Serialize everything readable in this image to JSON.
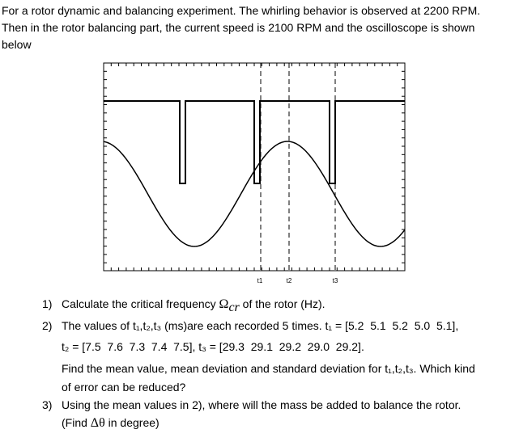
{
  "intro": {
    "lines": [
      "For a rotor dynamic and balancing experiment. The whirling behavior is observed at 2200 RPM.",
      "Then in the rotor balancing part, the current speed is 2100 RPM and the oscilloscope is shown",
      "below"
    ]
  },
  "figure": {
    "labels": [
      "t1",
      "t2",
      "t3"
    ]
  },
  "questions": [
    {
      "number": "1)",
      "parts": [
        "Calculate the critical frequency ",
        "Ω",
        "cr",
        " of the rotor (Hz)."
      ]
    },
    {
      "number": "2)",
      "lines": [
        "The values of t₁,t₂,t₃ (ms)are each recorded 5 times. t₁ = [5.2  5.1  5.2  5.0  5.1],",
        "t₂ = [7.5  7.6  7.3  7.4  7.5], t₃ = [29.3  29.1  29.2  29.0  29.2].",
        "Find the mean value, mean deviation and standard deviation for t₁,t₂,t₃. Which kind",
        "of error can be reduced?"
      ]
    },
    {
      "number": "3)",
      "lines": [
        "Using the mean values in 2), where will the mass be added to balance the rotor."
      ],
      "parts": [
        "(Find ",
        "Δθ",
        " in degree)"
      ]
    }
  ]
}
